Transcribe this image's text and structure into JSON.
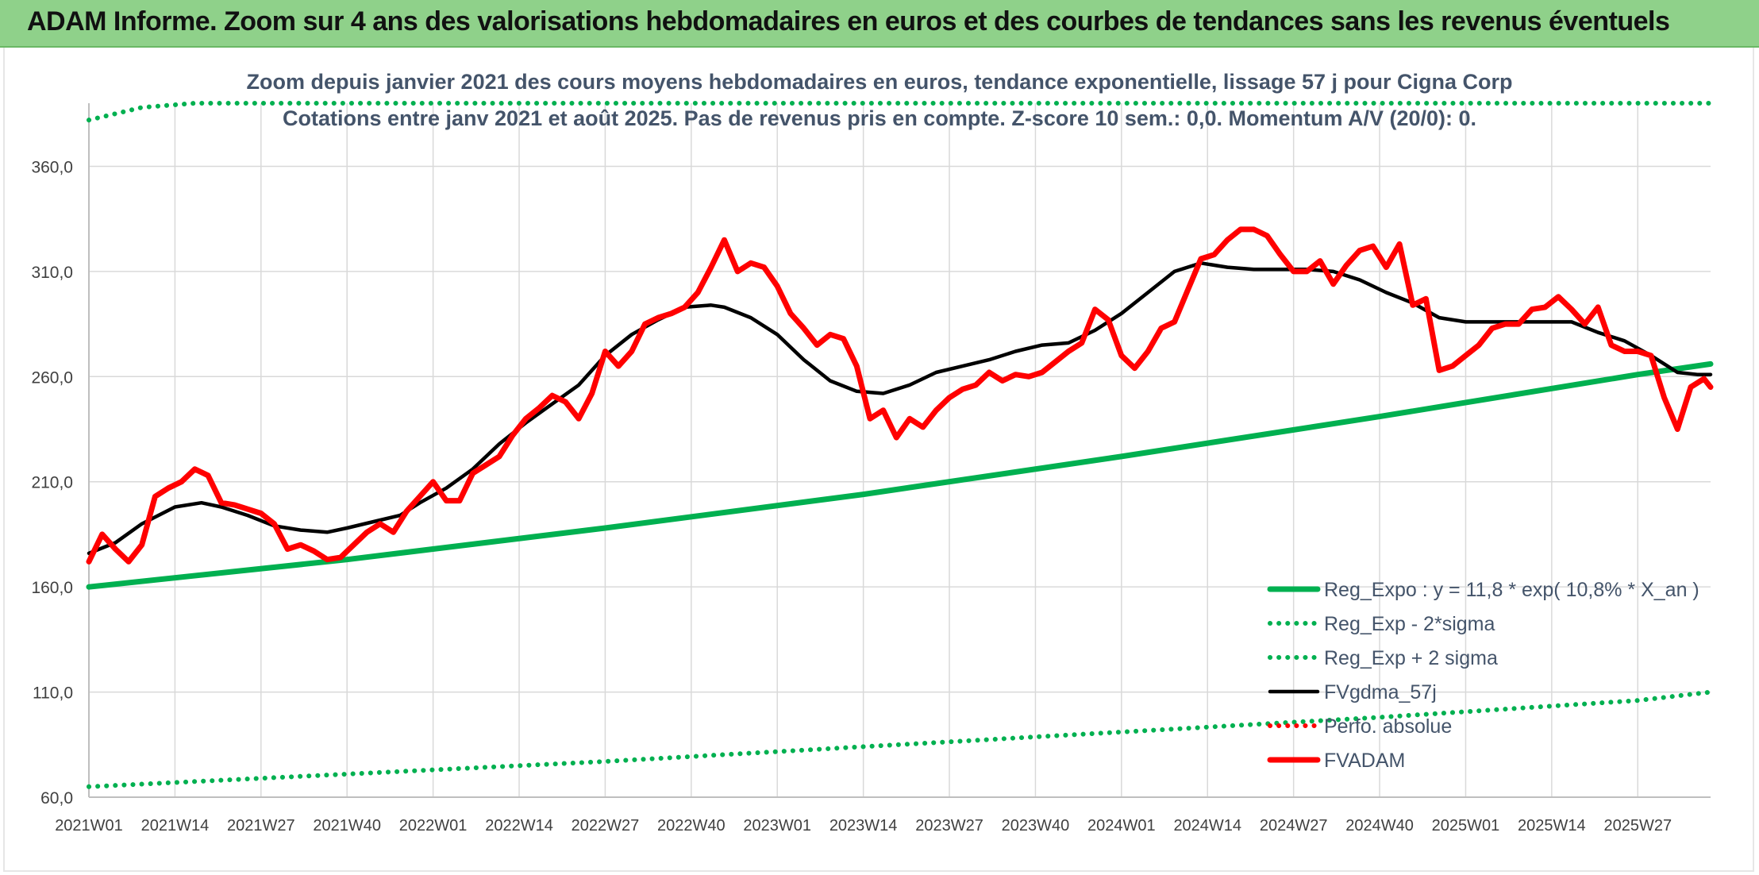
{
  "banner": {
    "title": "ADAM Informe. Zoom sur 4 ans des valorisations hebdomadaires en euros et des courbes de tendances sans les revenus éventuels"
  },
  "chart_data": {
    "type": "line",
    "title": "Zoom depuis janvier 2021 des cours moyens hebdomadaires en euros, tendance exponentielle, lissage 57 j pour Cigna Corp",
    "subtitle": "Cotations entre janv 2021 et août 2025. Pas de revenus pris en compte. Z-score 10 sem.: 0,0. Momentum A/V (20/0): 0.",
    "ylim": [
      60,
      390
    ],
    "yticks": [
      "60,0",
      "110,0",
      "160,0",
      "210,0",
      "260,0",
      "310,0",
      "360,0"
    ],
    "ytick_values": [
      60,
      110,
      160,
      210,
      260,
      310,
      360
    ],
    "xticks": [
      "2021W01",
      "2021W14",
      "2021W27",
      "2021W40",
      "2022W01",
      "2022W14",
      "2022W27",
      "2022W40",
      "2023W01",
      "2023W14",
      "2023W27",
      "2023W40",
      "2024W01",
      "2024W14",
      "2024W27",
      "2024W40",
      "2025W01",
      "2025W14",
      "2025W27"
    ],
    "xtick_weeks": [
      0,
      13,
      26,
      39,
      52,
      65,
      78,
      91,
      104,
      117,
      130,
      143,
      156,
      169,
      182,
      195,
      208,
      221,
      234
    ],
    "x_max_week": 245,
    "grid": true,
    "legend_position": "bottom-right",
    "legend": [
      {
        "name": "Reg_Expo : y = 11,8 * exp( 10,8% *  X_an )",
        "style": "solid",
        "color": "#00b050"
      },
      {
        "name": "Reg_Exp - 2*sigma",
        "style": "dotted",
        "color": "#00b050"
      },
      {
        "name": "Reg_Exp + 2 sigma",
        "style": "dotted",
        "color": "#00b050"
      },
      {
        "name": "FVgdma_57j",
        "style": "solid",
        "color": "#000000"
      },
      {
        "name": "Perfo. absolue",
        "style": "dotted",
        "color": "#ff0000"
      },
      {
        "name": "FVADAM",
        "style": "solid",
        "color": "#ff0000"
      }
    ],
    "series": [
      {
        "name": "Reg_Expo : y = 11,8 * exp( 10,8% *  X_an )",
        "color": "#00b050",
        "style": "solid",
        "x": [
          0,
          39,
          78,
          117,
          156,
          195,
          234,
          245
        ],
        "values": [
          160,
          173,
          188,
          204,
          222,
          241,
          261,
          266
        ]
      },
      {
        "name": "Reg_Exp - 2*sigma",
        "color": "#00b050",
        "style": "dotted",
        "x": [
          0,
          39,
          78,
          117,
          156,
          195,
          234,
          245
        ],
        "values": [
          65,
          71,
          77,
          84,
          91,
          98,
          106,
          110
        ]
      },
      {
        "name": "Reg_Exp + 2 sigma",
        "color": "#00b050",
        "style": "dotted",
        "x": [
          0,
          8,
          16,
          245
        ],
        "values": [
          382,
          388,
          390,
          390
        ]
      },
      {
        "name": "FVgdma_57j",
        "color": "#000000",
        "style": "solid",
        "x": [
          0,
          4,
          8,
          13,
          17,
          20,
          24,
          28,
          32,
          36,
          39,
          43,
          47,
          50,
          54,
          58,
          62,
          66,
          70,
          74,
          78,
          82,
          86,
          90,
          94,
          96,
          100,
          104,
          108,
          112,
          116,
          120,
          124,
          128,
          132,
          136,
          140,
          144,
          148,
          152,
          156,
          160,
          164,
          168,
          172,
          176,
          180,
          184,
          188,
          192,
          196,
          200,
          204,
          208,
          212,
          216,
          220,
          224,
          228,
          232,
          236,
          240,
          243,
          245
        ],
        "values": [
          176,
          181,
          190,
          198,
          200,
          198,
          194,
          189,
          187,
          186,
          188,
          191,
          194,
          200,
          207,
          216,
          228,
          238,
          247,
          256,
          270,
          280,
          287,
          293,
          294,
          293,
          288,
          280,
          268,
          258,
          253,
          252,
          256,
          262,
          265,
          268,
          272,
          275,
          276,
          282,
          290,
          300,
          310,
          314,
          312,
          311,
          311,
          311,
          310,
          306,
          300,
          295,
          288,
          286,
          286,
          286,
          286,
          286,
          281,
          277,
          270,
          262,
          261,
          261
        ]
      },
      {
        "name": "FVADAM",
        "color": "#ff0000",
        "style": "solid",
        "x": [
          0,
          2,
          4,
          6,
          8,
          10,
          12,
          14,
          16,
          18,
          20,
          22,
          24,
          26,
          28,
          30,
          32,
          34,
          36,
          38,
          40,
          42,
          44,
          46,
          48,
          50,
          52,
          54,
          56,
          58,
          60,
          62,
          64,
          66,
          68,
          70,
          72,
          74,
          76,
          78,
          80,
          82,
          84,
          86,
          88,
          90,
          92,
          94,
          96,
          98,
          100,
          102,
          104,
          106,
          108,
          110,
          112,
          114,
          116,
          118,
          120,
          122,
          124,
          126,
          128,
          130,
          132,
          134,
          136,
          138,
          140,
          142,
          144,
          146,
          148,
          150,
          152,
          154,
          156,
          158,
          160,
          162,
          164,
          166,
          168,
          170,
          172,
          174,
          176,
          178,
          180,
          182,
          184,
          186,
          188,
          190,
          192,
          194,
          196,
          198,
          200,
          202,
          204,
          206,
          208,
          210,
          212,
          214,
          216,
          218,
          220,
          222,
          224,
          226,
          228,
          230,
          232,
          234,
          236,
          238,
          240,
          242,
          244,
          245
        ],
        "values": [
          172,
          185,
          178,
          172,
          180,
          203,
          207,
          210,
          216,
          213,
          200,
          199,
          197,
          195,
          190,
          178,
          180,
          177,
          173,
          174,
          180,
          186,
          190,
          186,
          196,
          203,
          210,
          201,
          201,
          214,
          218,
          222,
          232,
          240,
          245,
          251,
          248,
          240,
          252,
          272,
          265,
          272,
          285,
          288,
          290,
          293,
          300,
          312,
          325,
          310,
          314,
          312,
          303,
          290,
          283,
          275,
          280,
          278,
          265,
          240,
          244,
          231,
          240,
          236,
          244,
          250,
          254,
          256,
          262,
          258,
          261,
          260,
          262,
          267,
          272,
          276,
          292,
          287,
          270,
          264,
          272,
          283,
          286,
          301,
          316,
          318,
          325,
          330,
          330,
          327,
          318,
          310,
          310,
          315,
          304,
          313,
          320,
          322,
          312,
          323,
          294,
          297,
          263,
          265,
          270,
          275,
          283,
          285,
          285,
          292,
          293,
          298,
          292,
          285,
          293,
          275,
          272,
          272,
          270,
          250,
          235,
          255,
          259,
          255
        ]
      }
    ]
  }
}
